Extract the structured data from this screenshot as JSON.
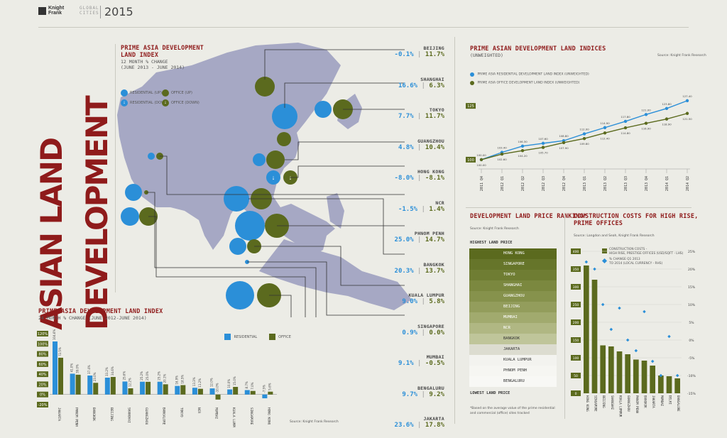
{
  "header": {
    "brand_line1": "Knight",
    "brand_line2": "Frank",
    "series_line1": "GLOBAL",
    "series_line2": "CITIES",
    "year": "2015"
  },
  "main_title_line1": "ASIAN LAND",
  "main_title_line2": "DEVELOPMENT",
  "map_panel": {
    "title_line1": "PRIME ASIA DEVELOPMENT",
    "title_line2": "LAND INDEX",
    "subtitle_line1": "12 MONTH % CHANGE",
    "subtitle_line2": "(JUNE 2013 - JUNE 2014)",
    "legend": {
      "res_up": "RESIDENTIAL (UP)",
      "res_down": "RESIDENTIAL (DOWN)",
      "off_up": "OFFICE (UP)",
      "off_down": "OFFICE (DOWN)"
    },
    "cities": [
      {
        "name": "BEIJING",
        "res": "-0.1%",
        "off": "11.7%"
      },
      {
        "name": "SHANGHAI",
        "res": "16.6%",
        "off": "6.3%"
      },
      {
        "name": "TOKYO",
        "res": "7.7%",
        "off": "11.7%"
      },
      {
        "name": "GUANGZHOU",
        "res": "4.8%",
        "off": "10.4%"
      },
      {
        "name": "HONG KONG",
        "res": "-8.0%",
        "off": "-8.1%"
      },
      {
        "name": "NCR",
        "res": "-1.5%",
        "off": "1.4%"
      },
      {
        "name": "PHNOM PENH",
        "res": "25.0%",
        "off": "14.7%"
      },
      {
        "name": "BANGKOK",
        "res": "20.3%",
        "off": "13.7%"
      },
      {
        "name": "KUALA LUMPUR",
        "res": "9.0%",
        "off": "5.8%"
      },
      {
        "name": "SINGAPORE",
        "res": "0.9%",
        "off": "0.0%"
      },
      {
        "name": "MUMBAI",
        "res": "9.1%",
        "off": "-0.5%"
      },
      {
        "name": "BENGALURU",
        "res": "9.7%",
        "off": "9.2%"
      },
      {
        "name": "JAKARTA",
        "res": "23.6%",
        "off": "17.8%"
      }
    ]
  },
  "bar_panel": {
    "title": "PRIME ASIA DEVELOPMENT LAND INDEX",
    "subtitle": "24 MONTH % CHANGE (JUNE 2012-JUNE 2014)",
    "source": "Source: Knight Frank Research",
    "legend_res": "RESIDENTIAL",
    "legend_off": "OFFICE"
  },
  "index_panel": {
    "title": "PRIME ASIAN DEVELOPMENT LAND INDICES",
    "subtitle": "(UNWEIGHTED)",
    "source": "Source: Knight Frank Research",
    "legend_res": "PRIME ASIA RESIDENTIAL DEVELOPMENT LAND INDEX (UNWEIGHTED)",
    "legend_off": "PRIME ASIA OFFICE DEVELOPMENT LAND INDEX (UNWEIGHTED)"
  },
  "ranking_panel": {
    "title": "DEVELOPMENT LAND PRICE RANKING*",
    "source": "Source: Knight Frank Research",
    "highest": "HIGHEST LAND PRICE",
    "lowest": "LOWEST LAND PRICE",
    "footnote_line1": "*Based on the average value of the prime residential",
    "footnote_line2": "and commercial (office) sites tracked",
    "items": [
      "HONG KONG",
      "SINGAPORE",
      "TOKYO",
      "SHANGHAI",
      "GUANGZHOU",
      "BEIJING",
      "MUMBAI",
      "NCR",
      "BANGKOK",
      "JAKARTA",
      "KUALA LUMPUR",
      "PHNOM PENH",
      "BENGALURU"
    ],
    "colors": [
      "#5b6a1e",
      "#66752a",
      "#6f7d33",
      "#7b883f",
      "#86924c",
      "#939d5c",
      "#a1aa6e",
      "#b0b783",
      "#bfc59a",
      "#dcdcd0",
      "#f3f3ef",
      "#f6f6f2",
      "#f8f8f5"
    ]
  },
  "construction_panel": {
    "title_line1": "CONSTRUCTION COSTS FOR HIGH RISE,",
    "title_line2": "PRIME OFFICES",
    "source": "Source: Langdon and Seah, Knight Frank Research",
    "legend_bar_line1": "CONSTRUCTION COSTS -",
    "legend_bar_line2": "HIGH RISE, PRESTIGE OFFICES (USD/SQFT - LHS)",
    "legend_dot_line1": "% CHANGE Q1 2013",
    "legend_dot_line2": "TO 2014 (LOCAL CURRENCY - RHS)"
  },
  "chart_data": [
    {
      "type": "bar",
      "title": "PRIME ASIA DEVELOPMENT LAND INDEX",
      "subtitle": "24 MONTH % CHANGE (JUNE 2012-JUNE 2014)",
      "ylim": [
        -20,
        120
      ],
      "ytick_labels": [
        "120%",
        "100%",
        "80%",
        "60%",
        "40%",
        "20%",
        "0%",
        "-20%"
      ],
      "categories": [
        "JAKARTA",
        "PHNOM PENH",
        "BANGKOK",
        "BEIJING",
        "SHANGHAI",
        "GUANGZHOU",
        "BANGALORE",
        "TOKYO",
        "NCR",
        "MUMBAI",
        "KUALA LUMPUR",
        "SINGAPORE",
        "HONG KONG"
      ],
      "series": [
        {
          "name": "RESIDENTIAL",
          "color": "#2b8fd8",
          "values": [
            104.6,
            41.0,
            37.4,
            33.2,
            25.6,
            25.2,
            25.2,
            16.9,
            13.3,
            12.0,
            10.0,
            8.7,
            -7.5
          ]
        },
        {
          "name": "OFFICE",
          "color": "#5b6a1e",
          "values": [
            72.5,
            39.0,
            23.0,
            34.6,
            12.2,
            25.0,
            20.1,
            18.5,
            11.2,
            -10.0,
            15.0,
            7.0,
            5.6
          ]
        }
      ],
      "value_labels": {
        "RESIDENTIAL": [
          "104.6%",
          "41.0%",
          "37.4%",
          "33.2%",
          "25.6%",
          "25.2%",
          "25.2%",
          "16.9%",
          "13.3%",
          "12.0%",
          "10.0%",
          "8.7%",
          "-7.5%"
        ],
        "OFFICE": [
          "72.5%",
          "39.0%",
          "23.0%",
          "34.6%",
          "12.2%",
          "25.0%",
          "20.1%",
          "18.5%",
          "11.2%",
          "-10.0%",
          "15.0%",
          "7.0%",
          "5.6%"
        ]
      }
    },
    {
      "type": "line",
      "title": "PRIME ASIAN DEVELOPMENT LAND INDICES",
      "x": [
        "2011 Q4",
        "2012 Q1",
        "2012 Q2",
        "2012 Q3",
        "2012 Q4",
        "2013 Q1",
        "2013 Q2",
        "2013 Q3",
        "2013 Q4",
        "2014 Q1",
        "2014 Q2"
      ],
      "ylim": [
        97,
        130
      ],
      "yticks": [
        100,
        125
      ],
      "series": [
        {
          "name": "PRIME ASIA RESIDENTIAL DEVELOPMENT LAND INDEX (UNWEIGHTED)",
          "color": "#2b8fd8",
          "values": [
            100.0,
            103.4,
            106.3,
            107.6,
            108.8,
            112.0,
            114.9,
            117.8,
            121.0,
            123.8,
            127.4
          ]
        },
        {
          "name": "PRIME ASIA OFFICE DEVELOPMENT LAND INDEX (UNWEIGHTED)",
          "color": "#5b6a1e",
          "values": [
            100.0,
            102.6,
            104.2,
            105.7,
            107.9,
            109.8,
            112.4,
            114.8,
            116.9,
            118.9,
            121.5
          ]
        }
      ]
    },
    {
      "type": "bar",
      "title": "CONSTRUCTION COSTS FOR HIGH RISE, PRIME OFFICES",
      "categories": [
        "HONG KONG",
        "SINGAPORE",
        "BEIJING",
        "SHANGHAI",
        "KUALA LUMPUR",
        "GUANGZHOU",
        "PHNOM PENH",
        "BANGKOK",
        "JAKARTA",
        "MUMBAI",
        "DELHI",
        "BANGALORE"
      ],
      "ylim_left": [
        0,
        400
      ],
      "yticks_left": [
        0,
        50,
        100,
        150,
        200,
        250,
        300,
        350,
        400
      ],
      "ylim_right": [
        -15,
        25
      ],
      "yticks_right": [
        "25%",
        "20%",
        "15%",
        "10%",
        "5%",
        "0%",
        "-5%",
        "-10%",
        "-15%"
      ],
      "series": [
        {
          "name": "CONSTRUCTION COSTS - HIGH RISE, PRESTIGE OFFICES (USD/SQFT - LHS)",
          "color": "#5b6a1e",
          "values": [
            360,
            320,
            135,
            132,
            118,
            110,
            95,
            92,
            78,
            50,
            48,
            42
          ]
        },
        {
          "name": "% CHANGE Q1 2013 TO 2014 (LOCAL CURRENCY - RHS)",
          "color": "#2b8fd8",
          "values": [
            22,
            20,
            10,
            3,
            9,
            0,
            -3,
            8,
            -6,
            -10,
            1,
            -10
          ]
        }
      ]
    }
  ]
}
